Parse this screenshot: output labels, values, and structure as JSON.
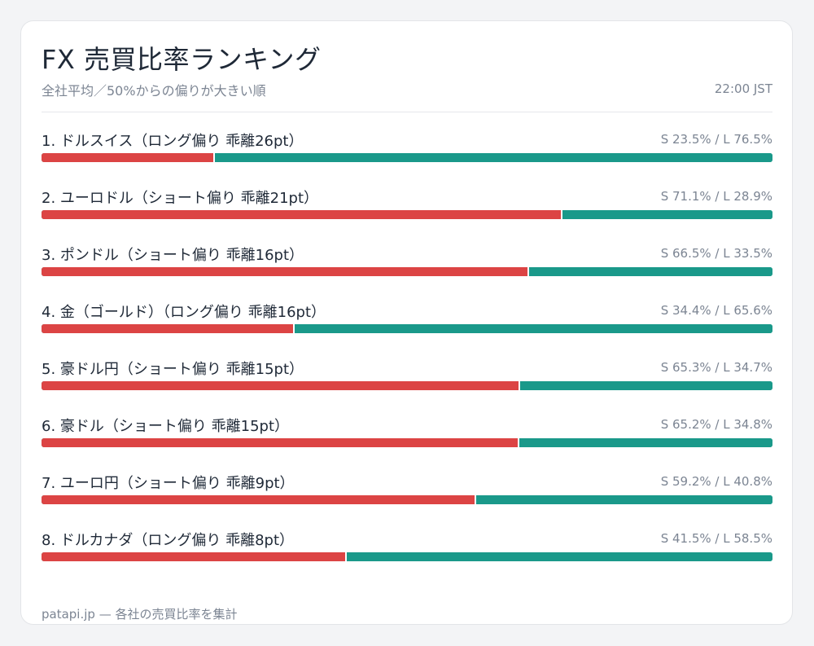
{
  "header": {
    "title": "FX 売買比率ランキング",
    "subtitle": "全社平均／50%からの偏りが大きい順",
    "time": "22:00 JST"
  },
  "footer": {
    "text": "patapi.jp — 各社の売買比率を集計"
  },
  "colors": {
    "short": "#dc4444",
    "long": "#1a998a"
  },
  "chart_data": {
    "type": "bar",
    "orientation": "horizontal-stacked",
    "categories": [
      "1. ドルスイス（ロング偏り 乖離26pt）",
      "2. ユーロドル（ショート偏り 乖離21pt）",
      "3. ポンドル（ショート偏り 乖離16pt）",
      "4. 金（ゴールド）（ロング偏り 乖離16pt）",
      "5. 豪ドル円（ショート偏り 乖離15pt）",
      "6. 豪ドル（ショート偏り 乖離15pt）",
      "7. ユーロ円（ショート偏り 乖離9pt）",
      "8. ドルカナダ（ロング偏り 乖離8pt）"
    ],
    "ratio_labels": [
      "S 23.5% / L 76.5%",
      "S 71.1% / L 28.9%",
      "S 66.5% / L 33.5%",
      "S 34.4% / L 65.6%",
      "S 65.3% / L 34.7%",
      "S 65.2% / L 34.8%",
      "S 59.2% / L 40.8%",
      "S 41.5% / L 58.5%"
    ],
    "series": [
      {
        "name": "S",
        "values": [
          23.5,
          71.1,
          66.5,
          34.4,
          65.3,
          65.2,
          59.2,
          41.5
        ]
      },
      {
        "name": "L",
        "values": [
          76.5,
          28.9,
          33.5,
          65.6,
          34.7,
          34.8,
          40.8,
          58.5
        ]
      }
    ],
    "xlim": [
      0,
      100
    ],
    "legend": "none",
    "grid": false
  }
}
